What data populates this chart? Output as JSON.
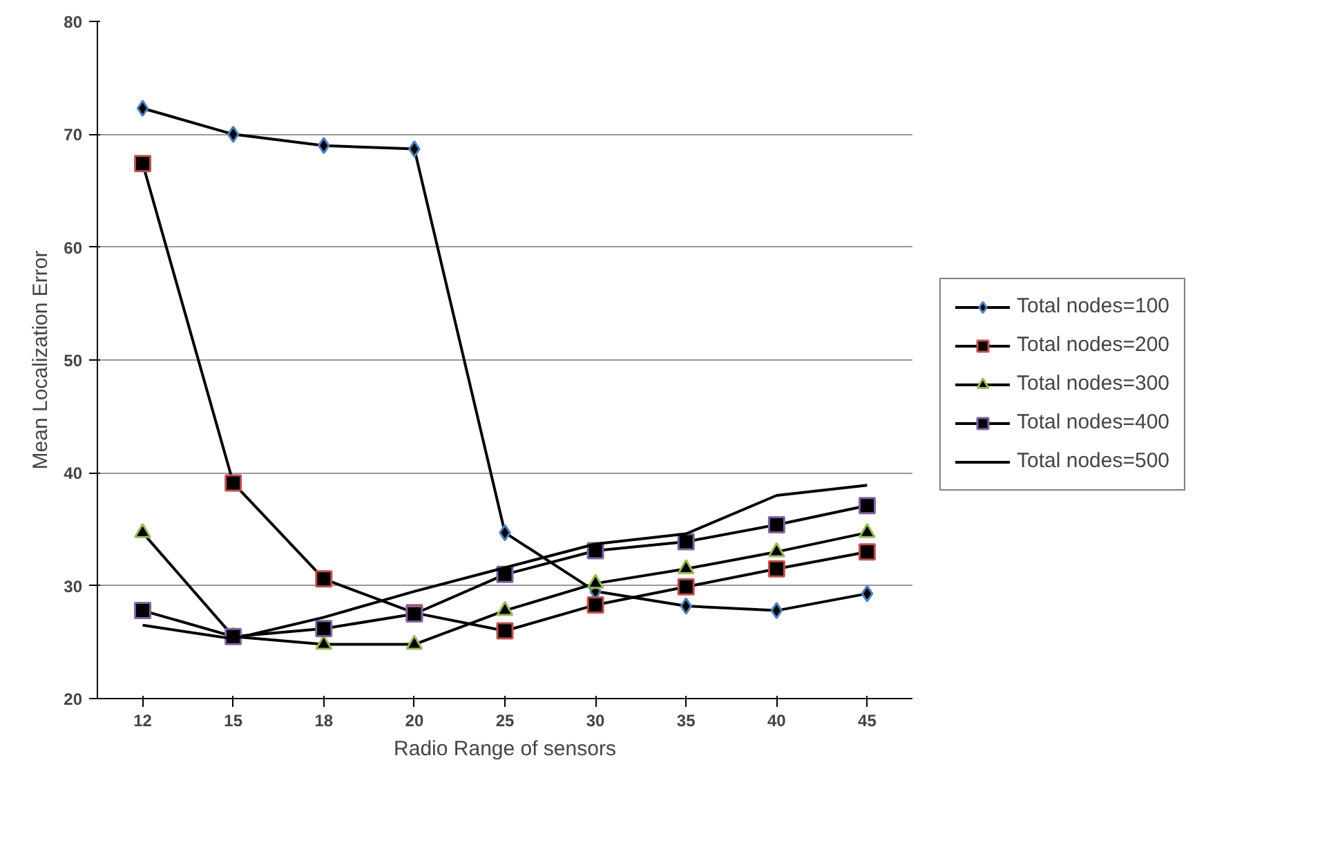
{
  "chart_data": {
    "type": "line",
    "xlabel": "Radio Range of sensors",
    "ylabel": "Mean Localization Error",
    "categories": [
      "12",
      "15",
      "18",
      "20",
      "25",
      "30",
      "35",
      "40",
      "45"
    ],
    "series": [
      {
        "name": "Total nodes=100",
        "color": "#000000",
        "marker": "diamond",
        "values": [
          72.3,
          70,
          69,
          68.7,
          34.7,
          29.5,
          28.2,
          27.8,
          29.3
        ]
      },
      {
        "name": "Total nodes=200",
        "color": "#000000",
        "marker": "square",
        "values": [
          67.4,
          39.1,
          30.6,
          27.6,
          26,
          28.3,
          29.9,
          31.5,
          33
        ]
      },
      {
        "name": "Total nodes=300",
        "color": "#000000",
        "marker": "triangle",
        "values": [
          34.7,
          25.5,
          24.8,
          24.8,
          27.8,
          30.2,
          31.5,
          33,
          34.7
        ]
      },
      {
        "name": "Total nodes=400",
        "color": "#000000",
        "marker": "square",
        "values": [
          27.8,
          25.5,
          26.2,
          27.5,
          31,
          33.1,
          33.9,
          35.4,
          37.1
        ]
      },
      {
        "name": "Total nodes=500",
        "color": "#000000",
        "marker": "none",
        "values": [
          26.5,
          25.3,
          27.2,
          29.5,
          31.6,
          33.7,
          34.6,
          38,
          38.9
        ]
      }
    ],
    "ylim": [
      20,
      80
    ],
    "yticks": [
      20,
      30,
      40,
      50,
      60,
      70,
      80
    ],
    "grid": "y",
    "legend": "right",
    "line_style": "solid"
  }
}
